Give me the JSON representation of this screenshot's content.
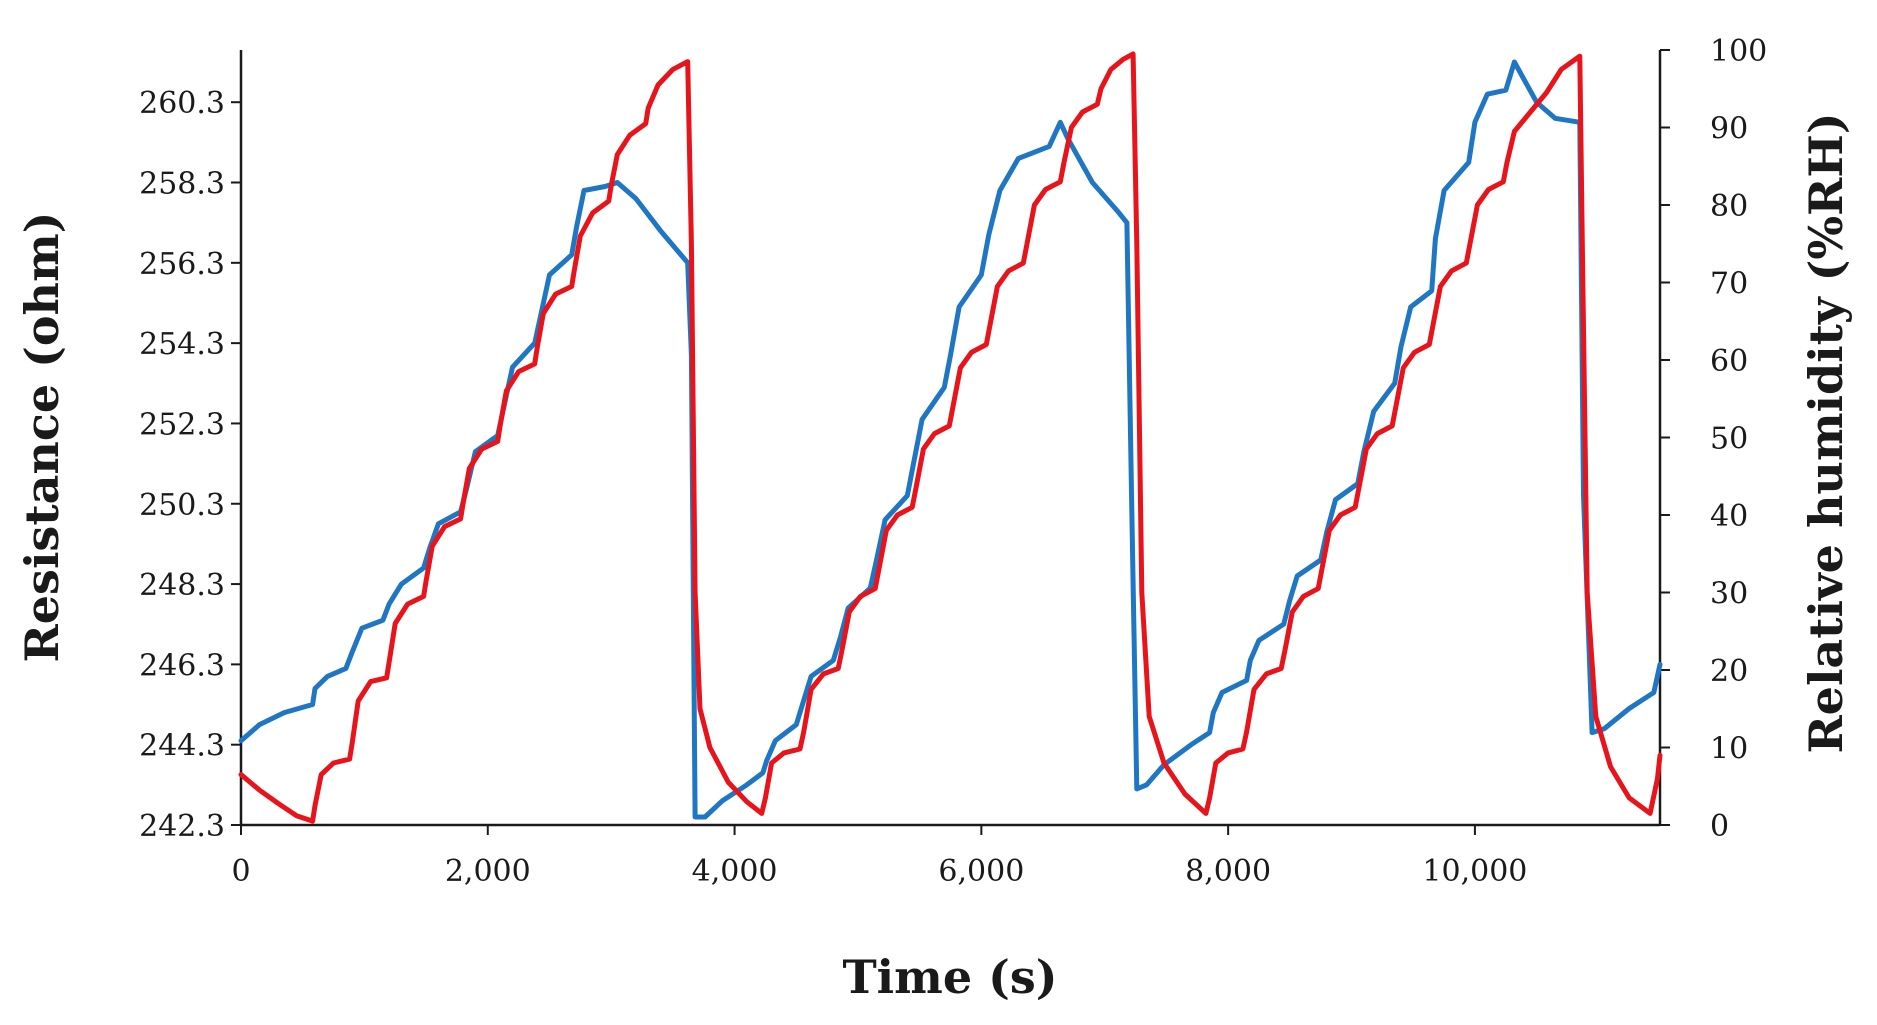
{
  "chart_data": {
    "type": "line",
    "xlabel": "Time (s)",
    "ylabel_left": "Resistance (ohm)",
    "ylabel_right": "Relative humidity (%RH)",
    "xlim": [
      0,
      11500
    ],
    "ylim_left": [
      242.3,
      261.6
    ],
    "ylim_right": [
      0,
      100
    ],
    "x_ticks": [
      0,
      2000,
      4000,
      6000,
      8000,
      10000
    ],
    "x_tick_labels": [
      "0",
      "2,000",
      "4,000",
      "6,000",
      "8,000",
      "10,000"
    ],
    "y_left_ticks": [
      242.3,
      244.3,
      246.3,
      248.3,
      250.3,
      252.3,
      254.3,
      256.3,
      258.3,
      260.3
    ],
    "y_left_tick_labels": [
      "242.3",
      "244.3",
      "246.3",
      "248.3",
      "250.3",
      "252.3",
      "254.3",
      "256.3",
      "258.3",
      "260.3"
    ],
    "y_right_ticks": [
      0,
      10,
      20,
      30,
      40,
      50,
      60,
      70,
      80,
      90,
      100
    ],
    "y_right_tick_labels": [
      "0",
      "10",
      "20",
      "30",
      "40",
      "50",
      "60",
      "70",
      "80",
      "90",
      "100"
    ],
    "series": [
      {
        "name": "Resistance",
        "axis": "left",
        "color": "#1f77c4",
        "points": [
          [
            0,
            244.4
          ],
          [
            150,
            244.8
          ],
          [
            350,
            245.1
          ],
          [
            580,
            245.3
          ],
          [
            600,
            245.7
          ],
          [
            700,
            246.0
          ],
          [
            850,
            246.2
          ],
          [
            900,
            246.6
          ],
          [
            980,
            247.2
          ],
          [
            1150,
            247.4
          ],
          [
            1200,
            247.8
          ],
          [
            1300,
            248.3
          ],
          [
            1480,
            248.7
          ],
          [
            1530,
            249.2
          ],
          [
            1600,
            249.8
          ],
          [
            1780,
            250.1
          ],
          [
            1830,
            250.7
          ],
          [
            1900,
            251.6
          ],
          [
            2080,
            252.0
          ],
          [
            2130,
            252.7
          ],
          [
            2200,
            253.7
          ],
          [
            2380,
            254.3
          ],
          [
            2430,
            255.0
          ],
          [
            2500,
            256.0
          ],
          [
            2680,
            256.5
          ],
          [
            2720,
            257.2
          ],
          [
            2780,
            258.1
          ],
          [
            2950,
            258.2
          ],
          [
            3050,
            258.3
          ],
          [
            3200,
            257.9
          ],
          [
            3400,
            257.1
          ],
          [
            3620,
            256.3
          ],
          [
            3650,
            254.0
          ],
          [
            3680,
            242.5
          ],
          [
            3760,
            242.5
          ],
          [
            3900,
            242.9
          ],
          [
            4100,
            243.3
          ],
          [
            4230,
            243.6
          ],
          [
            4260,
            243.9
          ],
          [
            4330,
            244.4
          ],
          [
            4500,
            244.8
          ],
          [
            4560,
            245.4
          ],
          [
            4620,
            246.0
          ],
          [
            4800,
            246.4
          ],
          [
            4860,
            247.0
          ],
          [
            4920,
            247.7
          ],
          [
            5100,
            248.2
          ],
          [
            5150,
            248.9
          ],
          [
            5220,
            249.9
          ],
          [
            5400,
            250.5
          ],
          [
            5450,
            251.3
          ],
          [
            5520,
            252.4
          ],
          [
            5700,
            253.2
          ],
          [
            5750,
            254.0
          ],
          [
            5820,
            255.2
          ],
          [
            6000,
            256.0
          ],
          [
            6060,
            257.0
          ],
          [
            6150,
            258.1
          ],
          [
            6300,
            258.9
          ],
          [
            6550,
            259.2
          ],
          [
            6640,
            259.8
          ],
          [
            6700,
            259.4
          ],
          [
            6900,
            258.3
          ],
          [
            7100,
            257.6
          ],
          [
            7180,
            257.3
          ],
          [
            7220,
            250.0
          ],
          [
            7260,
            243.2
          ],
          [
            7340,
            243.3
          ],
          [
            7480,
            243.8
          ],
          [
            7700,
            244.3
          ],
          [
            7850,
            244.6
          ],
          [
            7880,
            245.1
          ],
          [
            7950,
            245.6
          ],
          [
            8150,
            245.9
          ],
          [
            8180,
            246.4
          ],
          [
            8250,
            246.9
          ],
          [
            8450,
            247.3
          ],
          [
            8500,
            247.9
          ],
          [
            8560,
            248.5
          ],
          [
            8750,
            248.9
          ],
          [
            8800,
            249.6
          ],
          [
            8870,
            250.4
          ],
          [
            9050,
            250.8
          ],
          [
            9100,
            251.6
          ],
          [
            9180,
            252.6
          ],
          [
            9350,
            253.3
          ],
          [
            9400,
            254.2
          ],
          [
            9480,
            255.2
          ],
          [
            9650,
            255.6
          ],
          [
            9680,
            256.9
          ],
          [
            9750,
            258.1
          ],
          [
            9950,
            258.8
          ],
          [
            10000,
            259.8
          ],
          [
            10100,
            260.5
          ],
          [
            10250,
            260.6
          ],
          [
            10320,
            261.3
          ],
          [
            10500,
            260.3
          ],
          [
            10650,
            259.9
          ],
          [
            10850,
            259.8
          ],
          [
            10880,
            250.5
          ],
          [
            10950,
            244.6
          ],
          [
            11050,
            244.7
          ],
          [
            11250,
            245.2
          ],
          [
            11450,
            245.6
          ],
          [
            11500,
            246.3
          ]
        ]
      },
      {
        "name": "Relative humidity",
        "axis": "right",
        "color": "#e8141b",
        "points": [
          [
            0,
            6.5
          ],
          [
            150,
            4.5
          ],
          [
            300,
            2.8
          ],
          [
            450,
            1.2
          ],
          [
            580,
            0.5
          ],
          [
            600,
            2.5
          ],
          [
            650,
            6.5
          ],
          [
            750,
            8.0
          ],
          [
            880,
            8.5
          ],
          [
            900,
            10.5
          ],
          [
            950,
            16.0
          ],
          [
            1050,
            18.5
          ],
          [
            1180,
            19.0
          ],
          [
            1200,
            21.0
          ],
          [
            1250,
            26.0
          ],
          [
            1350,
            28.5
          ],
          [
            1480,
            29.5
          ],
          [
            1500,
            31.5
          ],
          [
            1550,
            36.0
          ],
          [
            1650,
            38.5
          ],
          [
            1780,
            39.5
          ],
          [
            1800,
            41.5
          ],
          [
            1850,
            46.0
          ],
          [
            1950,
            48.5
          ],
          [
            2080,
            49.5
          ],
          [
            2100,
            51.5
          ],
          [
            2150,
            56.0
          ],
          [
            2250,
            58.5
          ],
          [
            2380,
            59.5
          ],
          [
            2400,
            61.5
          ],
          [
            2450,
            66.0
          ],
          [
            2550,
            68.5
          ],
          [
            2680,
            69.5
          ],
          [
            2700,
            71.5
          ],
          [
            2750,
            76.0
          ],
          [
            2850,
            79.0
          ],
          [
            2980,
            80.5
          ],
          [
            3000,
            82.5
          ],
          [
            3050,
            86.5
          ],
          [
            3150,
            89.0
          ],
          [
            3280,
            90.5
          ],
          [
            3300,
            92.5
          ],
          [
            3380,
            95.5
          ],
          [
            3500,
            97.5
          ],
          [
            3620,
            98.5
          ],
          [
            3650,
            75.0
          ],
          [
            3680,
            30.0
          ],
          [
            3720,
            15.0
          ],
          [
            3800,
            10.0
          ],
          [
            3950,
            5.5
          ],
          [
            4100,
            3.0
          ],
          [
            4220,
            1.5
          ],
          [
            4250,
            3.5
          ],
          [
            4300,
            8.0
          ],
          [
            4400,
            9.3
          ],
          [
            4530,
            9.8
          ],
          [
            4560,
            12.0
          ],
          [
            4620,
            17.5
          ],
          [
            4720,
            19.5
          ],
          [
            4840,
            20.2
          ],
          [
            4870,
            22.5
          ],
          [
            4930,
            27.5
          ],
          [
            5020,
            29.5
          ],
          [
            5140,
            30.5
          ],
          [
            5170,
            33.0
          ],
          [
            5230,
            38.0
          ],
          [
            5320,
            40.0
          ],
          [
            5440,
            41.0
          ],
          [
            5470,
            43.5
          ],
          [
            5530,
            48.5
          ],
          [
            5620,
            50.5
          ],
          [
            5740,
            51.5
          ],
          [
            5770,
            54.0
          ],
          [
            5830,
            59.0
          ],
          [
            5920,
            61.0
          ],
          [
            6040,
            62.0
          ],
          [
            6070,
            64.5
          ],
          [
            6130,
            69.5
          ],
          [
            6220,
            71.5
          ],
          [
            6340,
            72.5
          ],
          [
            6370,
            75.0
          ],
          [
            6430,
            80.0
          ],
          [
            6520,
            82.0
          ],
          [
            6640,
            83.0
          ],
          [
            6670,
            85.5
          ],
          [
            6730,
            90.0
          ],
          [
            6820,
            92.0
          ],
          [
            6940,
            93.0
          ],
          [
            6970,
            95.0
          ],
          [
            7050,
            97.5
          ],
          [
            7150,
            98.8
          ],
          [
            7230,
            99.5
          ],
          [
            7260,
            75.0
          ],
          [
            7300,
            30.0
          ],
          [
            7360,
            14.0
          ],
          [
            7480,
            8.0
          ],
          [
            7650,
            4.0
          ],
          [
            7820,
            1.5
          ],
          [
            7850,
            3.5
          ],
          [
            7900,
            8.0
          ],
          [
            8000,
            9.3
          ],
          [
            8120,
            9.8
          ],
          [
            8150,
            12.0
          ],
          [
            8210,
            17.5
          ],
          [
            8310,
            19.5
          ],
          [
            8430,
            20.2
          ],
          [
            8460,
            22.5
          ],
          [
            8520,
            27.5
          ],
          [
            8610,
            29.5
          ],
          [
            8730,
            30.5
          ],
          [
            8760,
            33.0
          ],
          [
            8820,
            38.0
          ],
          [
            8910,
            40.0
          ],
          [
            9030,
            41.0
          ],
          [
            9060,
            43.5
          ],
          [
            9120,
            48.5
          ],
          [
            9210,
            50.5
          ],
          [
            9330,
            51.5
          ],
          [
            9360,
            54.0
          ],
          [
            9420,
            59.0
          ],
          [
            9510,
            61.0
          ],
          [
            9630,
            62.0
          ],
          [
            9660,
            64.5
          ],
          [
            9720,
            69.5
          ],
          [
            9810,
            71.5
          ],
          [
            9930,
            72.5
          ],
          [
            9960,
            75.0
          ],
          [
            10020,
            80.0
          ],
          [
            10110,
            82.0
          ],
          [
            10230,
            83.0
          ],
          [
            10260,
            85.5
          ],
          [
            10320,
            89.5
          ],
          [
            10450,
            92.0
          ],
          [
            10580,
            94.5
          ],
          [
            10700,
            97.5
          ],
          [
            10850,
            99.2
          ],
          [
            10870,
            75.0
          ],
          [
            10910,
            30.0
          ],
          [
            10980,
            14.0
          ],
          [
            11100,
            7.5
          ],
          [
            11250,
            3.5
          ],
          [
            11420,
            1.5
          ],
          [
            11480,
            6.0
          ],
          [
            11500,
            9.0
          ]
        ]
      }
    ]
  }
}
